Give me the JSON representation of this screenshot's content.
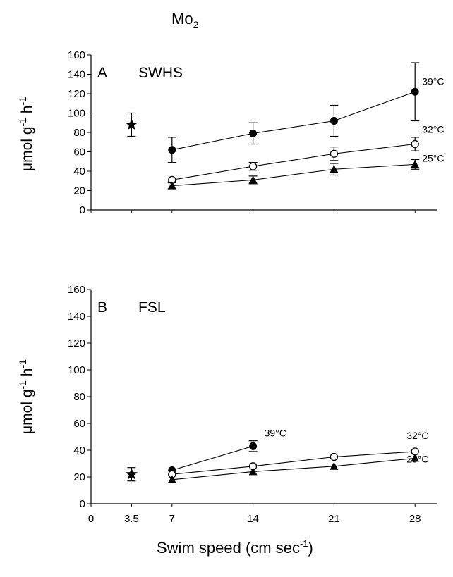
{
  "chart_data": [
    {
      "panel": "A",
      "type": "line",
      "title": "SWHS",
      "ylabel": "μmol g-1 h-1",
      "ylim": [
        0,
        160
      ],
      "yticks": [
        0,
        20,
        40,
        60,
        80,
        100,
        120,
        140,
        160
      ],
      "xticks": [
        "0",
        "3.5",
        "7",
        "14",
        "21",
        "28"
      ],
      "xlim": [
        0,
        30
      ],
      "grid": false,
      "legend": "none",
      "series": [
        {
          "name": "39°C",
          "marker": "filled-circle",
          "x": [
            7,
            14,
            21,
            28
          ],
          "y": [
            62,
            79,
            92,
            122
          ],
          "err": [
            13,
            11,
            16,
            30
          ]
        },
        {
          "name": "32°C",
          "marker": "open-circle",
          "x": [
            7,
            14,
            21,
            28
          ],
          "y": [
            31,
            45,
            58,
            68
          ],
          "err": [
            2,
            4,
            7,
            7
          ]
        },
        {
          "name": "25°C",
          "marker": "filled-triangle",
          "x": [
            7,
            14,
            21,
            28
          ],
          "y": [
            25,
            31,
            42,
            47
          ],
          "err": [
            3,
            4,
            6,
            5
          ]
        }
      ],
      "reference_point": {
        "marker": "star",
        "x": 3.5,
        "y": 88,
        "err": 12
      }
    },
    {
      "panel": "B",
      "type": "line",
      "title": "FSL",
      "ylabel": "μmol g-1 h-1",
      "ylim": [
        0,
        160
      ],
      "yticks": [
        0,
        20,
        40,
        60,
        80,
        100,
        120,
        140,
        160
      ],
      "xticks": [
        "0",
        "3.5",
        "7",
        "14",
        "21",
        "28"
      ],
      "xlim": [
        0,
        30
      ],
      "grid": false,
      "legend": "none",
      "series": [
        {
          "name": "39°C",
          "marker": "filled-circle",
          "x": [
            7,
            14
          ],
          "y": [
            25,
            43
          ],
          "err": [
            1,
            4
          ]
        },
        {
          "name": "32°C",
          "marker": "open-circle",
          "x": [
            7,
            14,
            21,
            28
          ],
          "y": [
            22,
            28,
            35,
            39
          ],
          "err": [
            1,
            1,
            1,
            1
          ]
        },
        {
          "name": "25°C",
          "marker": "filled-triangle",
          "x": [
            7,
            14,
            21,
            28
          ],
          "y": [
            18,
            24,
            28,
            34
          ],
          "err": [
            1,
            1,
            1,
            1
          ]
        }
      ],
      "reference_point": {
        "marker": "star",
        "x": 3.5,
        "y": 22,
        "err": 5
      }
    }
  ],
  "title_main": "Mo",
  "title_sub": "2",
  "xlabel_text": "Swim speed (cm sec",
  "xlabel_sup": "-1",
  "xlabel_end": ")",
  "ylabel_base": "μmol g",
  "ylabel_sup1": "-1",
  "ylabel_mid": " h",
  "ylabel_sup2": "-1"
}
